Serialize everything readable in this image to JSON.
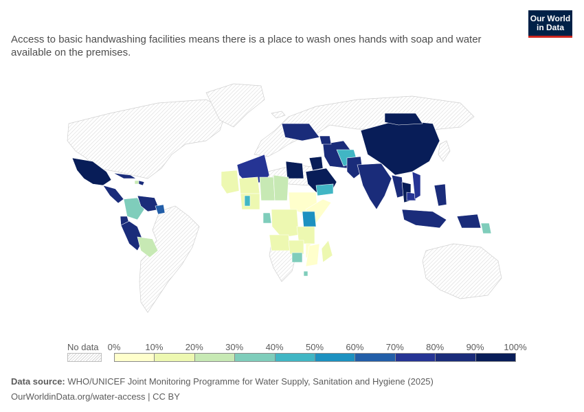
{
  "subtitle": "Access to basic handwashing facilities means there is a place to wash ones hands with soap and water available on the premises.",
  "logo": {
    "line1": "Our World",
    "line2": "in Data"
  },
  "legend": {
    "no_data_label": "No data",
    "ticks": [
      "0%",
      "10%",
      "20%",
      "30%",
      "40%",
      "50%",
      "60%",
      "70%",
      "80%",
      "90%",
      "100%"
    ],
    "colors": [
      "#ffffcc",
      "#edf8b1",
      "#c7e9b4",
      "#7fcdbb",
      "#41b6c4",
      "#1d91c0",
      "#225ea8",
      "#253494",
      "#1a2c7a",
      "#081d58"
    ]
  },
  "footer": {
    "source_label": "Data source:",
    "source_text": " WHO/UNICEF Joint Monitoring Programme for Water Supply, Sanitation and Hygiene (2025)",
    "url_text": "OurWorldinData.org/water-access | CC BY"
  },
  "chart_data": {
    "type": "choropleth",
    "value_unit": "% of population",
    "scale_min": 0,
    "scale_max": 100,
    "bin_step": 10,
    "regions": [
      {
        "name": "Mexico",
        "bin": 9
      },
      {
        "name": "Central America",
        "bin": 8
      },
      {
        "name": "Cuba",
        "bin": 8
      },
      {
        "name": "Haiti",
        "bin": 2
      },
      {
        "name": "Dominican Republic",
        "bin": 8
      },
      {
        "name": "Colombia",
        "bin": 3
      },
      {
        "name": "Venezuela",
        "bin": 8
      },
      {
        "name": "Guyana",
        "bin": 6
      },
      {
        "name": "Ecuador",
        "bin": 8
      },
      {
        "name": "Peru",
        "bin": 8
      },
      {
        "name": "Bolivia",
        "bin": 2
      },
      {
        "name": "Algeria",
        "bin": 7
      },
      {
        "name": "Egypt",
        "bin": 9
      },
      {
        "name": "Saudi Arabia",
        "bin": 9
      },
      {
        "name": "Iraq",
        "bin": 9
      },
      {
        "name": "Iran",
        "bin": 8
      },
      {
        "name": "Yemen",
        "bin": 4
      },
      {
        "name": "Afghanistan",
        "bin": 4
      },
      {
        "name": "Pakistan",
        "bin": 8
      },
      {
        "name": "India",
        "bin": 8
      },
      {
        "name": "Kazakhstan",
        "bin": 8
      },
      {
        "name": "Uzbekistan",
        "bin": 8
      },
      {
        "name": "China",
        "bin": 9
      },
      {
        "name": "Mongolia",
        "bin": 9
      },
      {
        "name": "Myanmar",
        "bin": 8
      },
      {
        "name": "Thailand",
        "bin": 9
      },
      {
        "name": "Cambodia",
        "bin": 7
      },
      {
        "name": "Vietnam",
        "bin": 7
      },
      {
        "name": "Philippines",
        "bin": 8
      },
      {
        "name": "Indonesia",
        "bin": 8
      },
      {
        "name": "Papua New Guinea",
        "bin": 8
      },
      {
        "name": "Solomon Islands",
        "bin": 3
      },
      {
        "name": "Mali",
        "bin": 1
      },
      {
        "name": "Niger",
        "bin": 1
      },
      {
        "name": "Chad",
        "bin": 2
      },
      {
        "name": "Sudan",
        "bin": 2
      },
      {
        "name": "Nigeria",
        "bin": 1
      },
      {
        "name": "Ghana",
        "bin": 4
      },
      {
        "name": "Ethiopia",
        "bin": 0
      },
      {
        "name": "Somalia",
        "bin": 0
      },
      {
        "name": "Kenya",
        "bin": 5
      },
      {
        "name": "Gabon",
        "bin": 3
      },
      {
        "name": "DR Congo",
        "bin": 1
      },
      {
        "name": "Tanzania",
        "bin": 1
      },
      {
        "name": "Angola",
        "bin": 1
      },
      {
        "name": "Zambia",
        "bin": 1
      },
      {
        "name": "Malawi",
        "bin": 0
      },
      {
        "name": "Mozambique",
        "bin": 0
      },
      {
        "name": "Zimbabwe",
        "bin": 3
      },
      {
        "name": "Madagascar",
        "bin": 1
      },
      {
        "name": "Eswatini",
        "bin": 3
      }
    ]
  }
}
